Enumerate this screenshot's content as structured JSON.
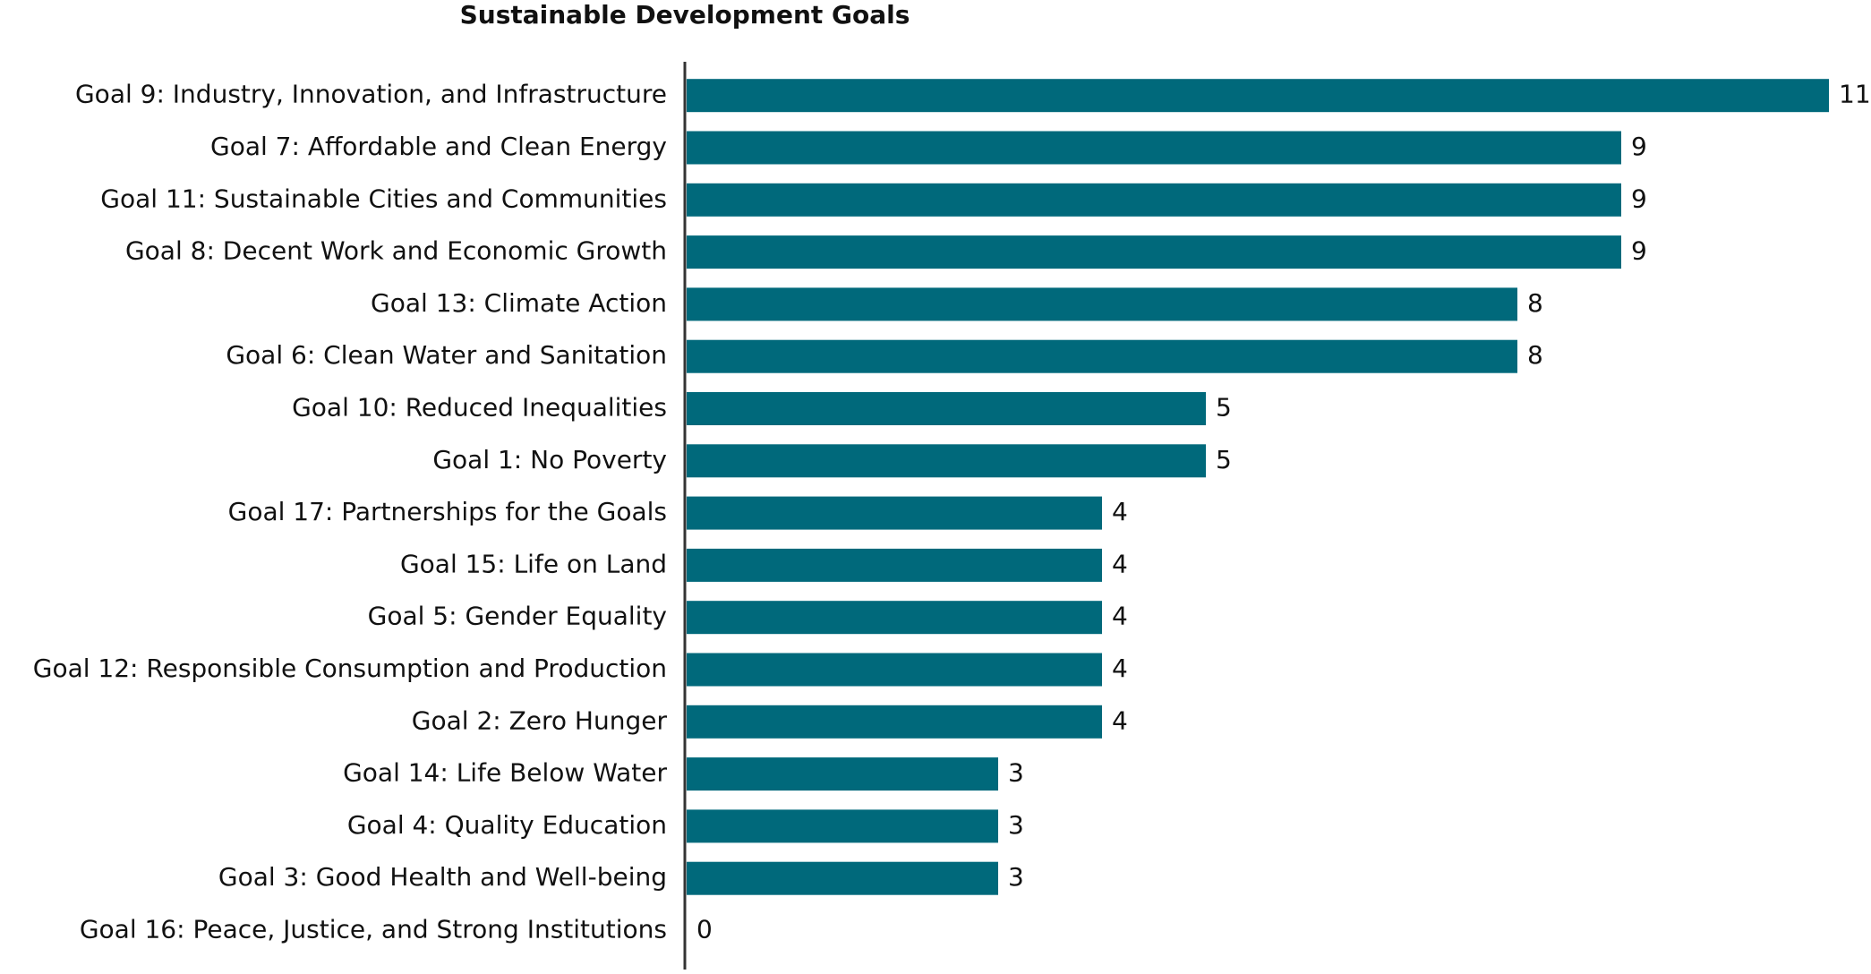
{
  "chart_data": {
    "type": "bar",
    "orientation": "horizontal",
    "title": "Sustainable Development Goals",
    "categories": [
      "Goal 9: Industry, Innovation, and Infrastructure",
      "Goal 7: Affordable and Clean Energy",
      "Goal 11: Sustainable Cities and Communities",
      "Goal 8: Decent Work and Economic Growth",
      "Goal 13: Climate Action",
      "Goal 6: Clean Water and Sanitation",
      "Goal 10: Reduced Inequalities",
      "Goal 1: No Poverty",
      "Goal 17: Partnerships for the Goals",
      "Goal 15: Life on Land",
      "Goal 5: Gender Equality",
      "Goal 12: Responsible Consumption and Production",
      "Goal 2: Zero Hunger",
      "Goal 14: Life Below Water",
      "Goal 4: Quality Education",
      "Goal 3: Good Health and Well-being",
      "Goal 16: Peace, Justice, and Strong Institutions"
    ],
    "values": [
      11,
      9,
      9,
      9,
      8,
      8,
      5,
      5,
      4,
      4,
      4,
      4,
      4,
      3,
      3,
      3,
      0
    ],
    "color": "#00697b"
  }
}
